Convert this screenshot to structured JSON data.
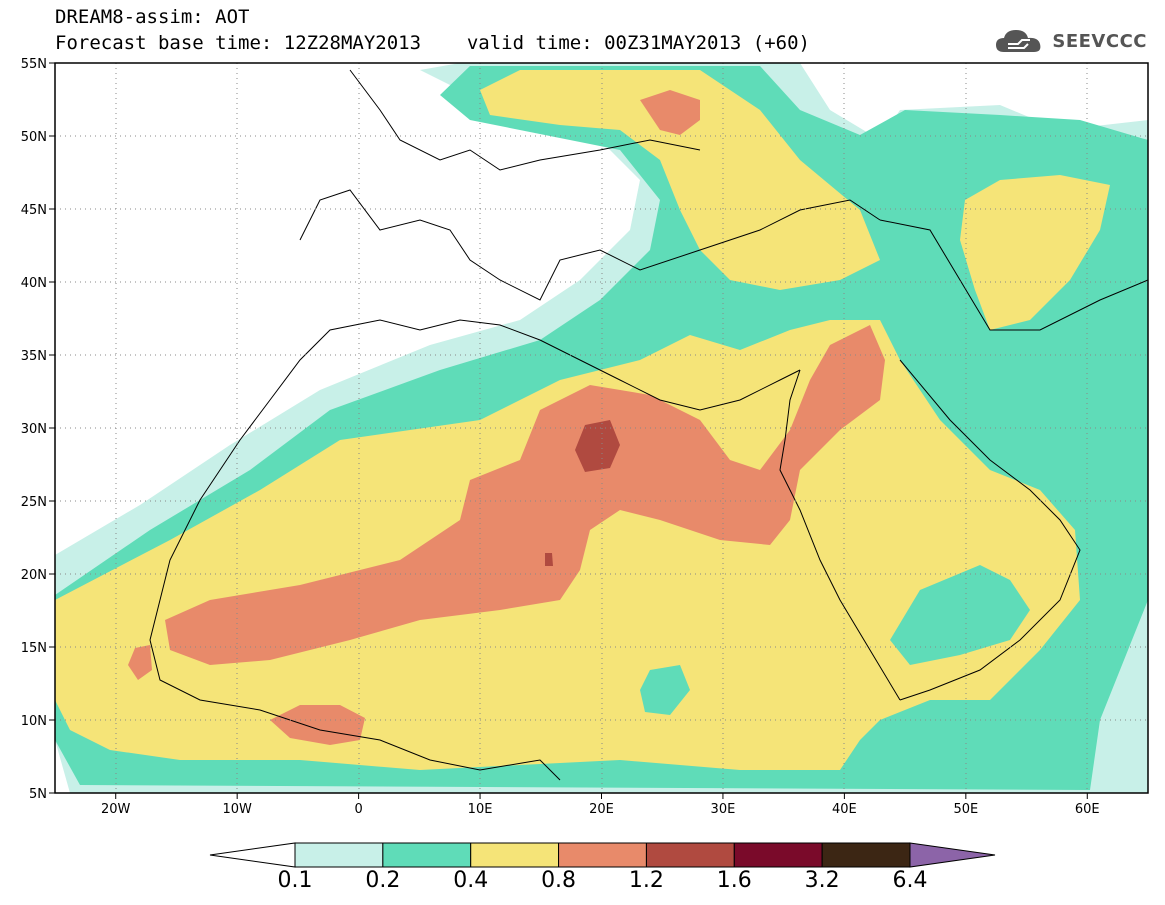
{
  "header": {
    "title": "DREAM8-assim: AOT",
    "subtitle_base": "Forecast base time: 12Z28MAY2013",
    "subtitle_valid": "valid time: 00Z31MAY2013 (+60)",
    "brand": "SEEVCCC"
  },
  "map": {
    "projection": "lat-lon",
    "lon_range": [
      -25,
      65
    ],
    "lat_range": [
      5,
      55
    ],
    "lat_ticks": [
      {
        "label": "55N",
        "value": 55
      },
      {
        "label": "50N",
        "value": 50
      },
      {
        "label": "45N",
        "value": 45
      },
      {
        "label": "40N",
        "value": 40
      },
      {
        "label": "35N",
        "value": 35
      },
      {
        "label": "30N",
        "value": 30
      },
      {
        "label": "25N",
        "value": 25
      },
      {
        "label": "20N",
        "value": 20
      },
      {
        "label": "15N",
        "value": 15
      },
      {
        "label": "10N",
        "value": 10
      },
      {
        "label": "5N",
        "value": 5
      }
    ],
    "lon_ticks": [
      {
        "label": "20W",
        "value": -20
      },
      {
        "label": "10W",
        "value": -10
      },
      {
        "label": "0",
        "value": 0
      },
      {
        "label": "10E",
        "value": 10
      },
      {
        "label": "20E",
        "value": 20
      },
      {
        "label": "30E",
        "value": 30
      },
      {
        "label": "40E",
        "value": 40
      },
      {
        "label": "50E",
        "value": 50
      },
      {
        "label": "60E",
        "value": 60
      }
    ],
    "gridlines": "dotted"
  },
  "colorbar": {
    "labels": [
      "0.1",
      "0.2",
      "0.4",
      "0.8",
      "1.2",
      "1.6",
      "3.2",
      "6.4"
    ],
    "colors": [
      "#ffffff",
      "#c8f0e8",
      "#5fdcb8",
      "#f5e478",
      "#e88a6a",
      "#b04a40",
      "#7a0a2a",
      "#3c2614",
      "#8c64a8"
    ]
  },
  "colors": {
    "level_0.1": "#c8f0e8",
    "level_0.2": "#5fdcb8",
    "level_0.4": "#f5e478",
    "level_0.8": "#e88a6a",
    "level_1.2": "#b04a40"
  }
}
